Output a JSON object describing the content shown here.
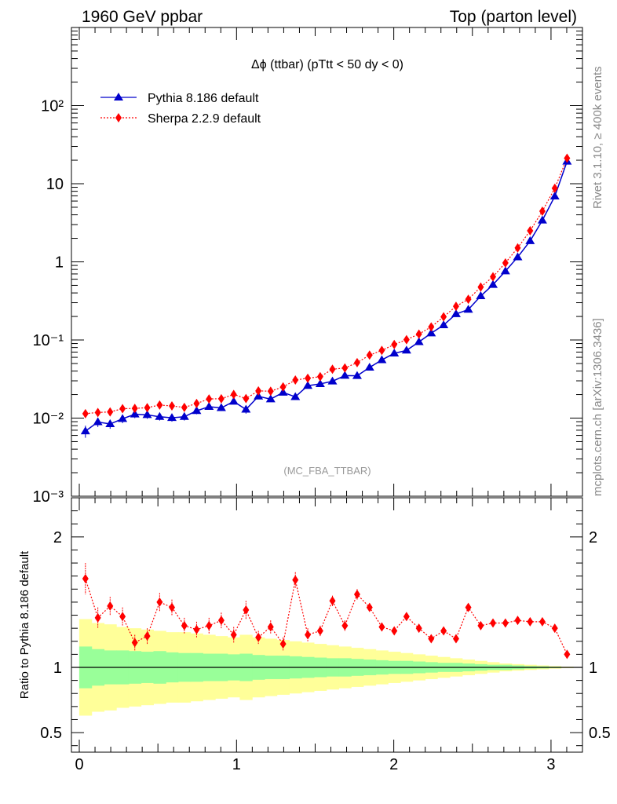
{
  "header": {
    "left_title": "1960 GeV ppbar",
    "right_title": "Top (parton level)"
  },
  "side_labels": {
    "rivet": "Rivet 3.1.10, ≥ 400k events",
    "mcplots": "mcplots.cern.ch [arXiv:1306.3436]"
  },
  "chart_data": [
    {
      "type": "line",
      "title": "Δϕ (ttbar) (pTtt < 50 dy < 0)",
      "annotation": "(MC_FBA_TTBAR)",
      "yscale": "log",
      "xlim": [
        -0.05,
        3.2
      ],
      "ylim": [
        0.001,
        1000
      ],
      "xlabel": "",
      "ylabel": "",
      "ytick_labels": [
        "10⁻³",
        "10⁻²",
        "10⁻¹",
        "1",
        "10",
        "10²"
      ],
      "legend_position": "top-left",
      "x": [
        0.039,
        0.118,
        0.196,
        0.275,
        0.353,
        0.432,
        0.511,
        0.589,
        0.668,
        0.746,
        0.825,
        0.903,
        0.982,
        1.06,
        1.139,
        1.217,
        1.296,
        1.374,
        1.453,
        1.532,
        1.61,
        1.689,
        1.767,
        1.846,
        1.924,
        2.003,
        2.081,
        2.16,
        2.238,
        2.317,
        2.396,
        2.474,
        2.553,
        2.631,
        2.71,
        2.788,
        2.867,
        2.945,
        3.024,
        3.102
      ],
      "series": [
        {
          "name": "Pythia 8.186 default",
          "color": "#0000cc",
          "line": "solid",
          "marker": "triangle",
          "values": [
            0.0068,
            0.0089,
            0.0084,
            0.0098,
            0.0112,
            0.011,
            0.0104,
            0.0101,
            0.0104,
            0.0124,
            0.014,
            0.0135,
            0.0163,
            0.0129,
            0.019,
            0.0175,
            0.0213,
            0.0187,
            0.026,
            0.0274,
            0.0296,
            0.035,
            0.0348,
            0.0445,
            0.0555,
            0.0675,
            0.0735,
            0.0945,
            0.122,
            0.155,
            0.215,
            0.245,
            0.365,
            0.51,
            0.76,
            1.15,
            1.85,
            3.4,
            6.9,
            19.3
          ],
          "errors": [
            0.0012,
            0.0012,
            0.0011,
            0.0012,
            0.0012,
            0.0012,
            0.0011,
            0.0011,
            0.0011,
            0.0012,
            0.0012,
            0.0012,
            0.0013,
            0.0015,
            0.0013,
            0.0012,
            0.0013,
            0.0012,
            0.0014,
            0.0014,
            0.0015,
            0.0016,
            0.0016,
            0.002,
            0.002,
            0.003,
            0.003,
            0.004,
            0.005,
            0.006,
            0.008,
            0.009,
            0.012,
            0.016,
            0.02,
            0.03,
            0.04,
            0.06,
            0.1,
            0.2
          ]
        },
        {
          "name": "Sherpa 2.2.9 default",
          "color": "#ff0000",
          "line": "dotted",
          "marker": "diamond",
          "values": [
            0.0114,
            0.0118,
            0.012,
            0.0132,
            0.0133,
            0.0136,
            0.0147,
            0.0143,
            0.0137,
            0.0154,
            0.0176,
            0.0177,
            0.0201,
            0.0178,
            0.0223,
            0.0221,
            0.0251,
            0.0307,
            0.0324,
            0.0339,
            0.0422,
            0.0438,
            0.0513,
            0.064,
            0.0735,
            0.0875,
            0.101,
            0.119,
            0.147,
            0.198,
            0.27,
            0.332,
            0.475,
            0.645,
            0.97,
            1.51,
            2.5,
            4.45,
            8.75,
            21.2
          ]
        }
      ]
    },
    {
      "type": "line",
      "ylabel": "Ratio to Pythia 8.186 default",
      "yscale": "linear",
      "xlim": [
        -0.05,
        3.2
      ],
      "ylim": [
        0.35,
        2.3
      ],
      "xtick_labels": [
        "0",
        "1",
        "2",
        "3"
      ],
      "ytick_labels": [
        "0.5",
        "1",
        "2"
      ],
      "reference_line": 1,
      "x": [
        0.039,
        0.118,
        0.196,
        0.275,
        0.353,
        0.432,
        0.511,
        0.589,
        0.668,
        0.746,
        0.825,
        0.903,
        0.982,
        1.06,
        1.139,
        1.217,
        1.296,
        1.374,
        1.453,
        1.532,
        1.61,
        1.689,
        1.767,
        1.846,
        1.924,
        2.003,
        2.081,
        2.16,
        2.238,
        2.317,
        2.396,
        2.474,
        2.553,
        2.631,
        2.71,
        2.788,
        2.867,
        2.945,
        3.024,
        3.102
      ],
      "bands": {
        "inner_color": "#99ff99",
        "outer_color": "#ffff99",
        "inner_halfwidth": [
          0.16,
          0.14,
          0.13,
          0.13,
          0.125,
          0.12,
          0.125,
          0.115,
          0.11,
          0.11,
          0.105,
          0.105,
          0.1,
          0.105,
          0.095,
          0.09,
          0.09,
          0.085,
          0.08,
          0.075,
          0.07,
          0.07,
          0.065,
          0.06,
          0.055,
          0.05,
          0.05,
          0.045,
          0.04,
          0.035,
          0.035,
          0.03,
          0.025,
          0.02,
          0.02,
          0.015,
          0.01,
          0.008,
          0.005,
          0.003
        ],
        "outer_halfwidth": [
          0.37,
          0.34,
          0.33,
          0.31,
          0.3,
          0.29,
          0.28,
          0.27,
          0.27,
          0.26,
          0.25,
          0.24,
          0.23,
          0.25,
          0.23,
          0.22,
          0.21,
          0.2,
          0.19,
          0.18,
          0.17,
          0.16,
          0.15,
          0.14,
          0.13,
          0.12,
          0.11,
          0.1,
          0.09,
          0.08,
          0.07,
          0.06,
          0.05,
          0.04,
          0.03,
          0.025,
          0.02,
          0.015,
          0.01,
          0.005
        ]
      },
      "series": [
        {
          "name": "Sherpa 2.2.9 default",
          "color": "#ff0000",
          "line": "dotted",
          "marker": "diamond",
          "values": [
            1.68,
            1.38,
            1.47,
            1.39,
            1.19,
            1.24,
            1.5,
            1.46,
            1.32,
            1.29,
            1.32,
            1.36,
            1.25,
            1.44,
            1.23,
            1.31,
            1.18,
            1.67,
            1.25,
            1.28,
            1.51,
            1.32,
            1.56,
            1.46,
            1.31,
            1.28,
            1.39,
            1.3,
            1.22,
            1.28,
            1.22,
            1.46,
            1.32,
            1.34,
            1.34,
            1.36,
            1.35,
            1.35,
            1.3,
            1.1
          ],
          "errors": [
            0.12,
            0.08,
            0.07,
            0.07,
            0.06,
            0.06,
            0.07,
            0.06,
            0.06,
            0.06,
            0.06,
            0.06,
            0.06,
            0.07,
            0.05,
            0.05,
            0.05,
            0.06,
            0.05,
            0.04,
            0.04,
            0.04,
            0.04,
            0.03,
            0.03,
            0.03,
            0.03,
            0.02,
            0.02,
            0.02,
            0.02,
            0.02,
            0.02,
            0.01,
            0.01,
            0.01,
            0.01,
            0.01,
            0.01,
            0.01
          ]
        }
      ]
    }
  ]
}
